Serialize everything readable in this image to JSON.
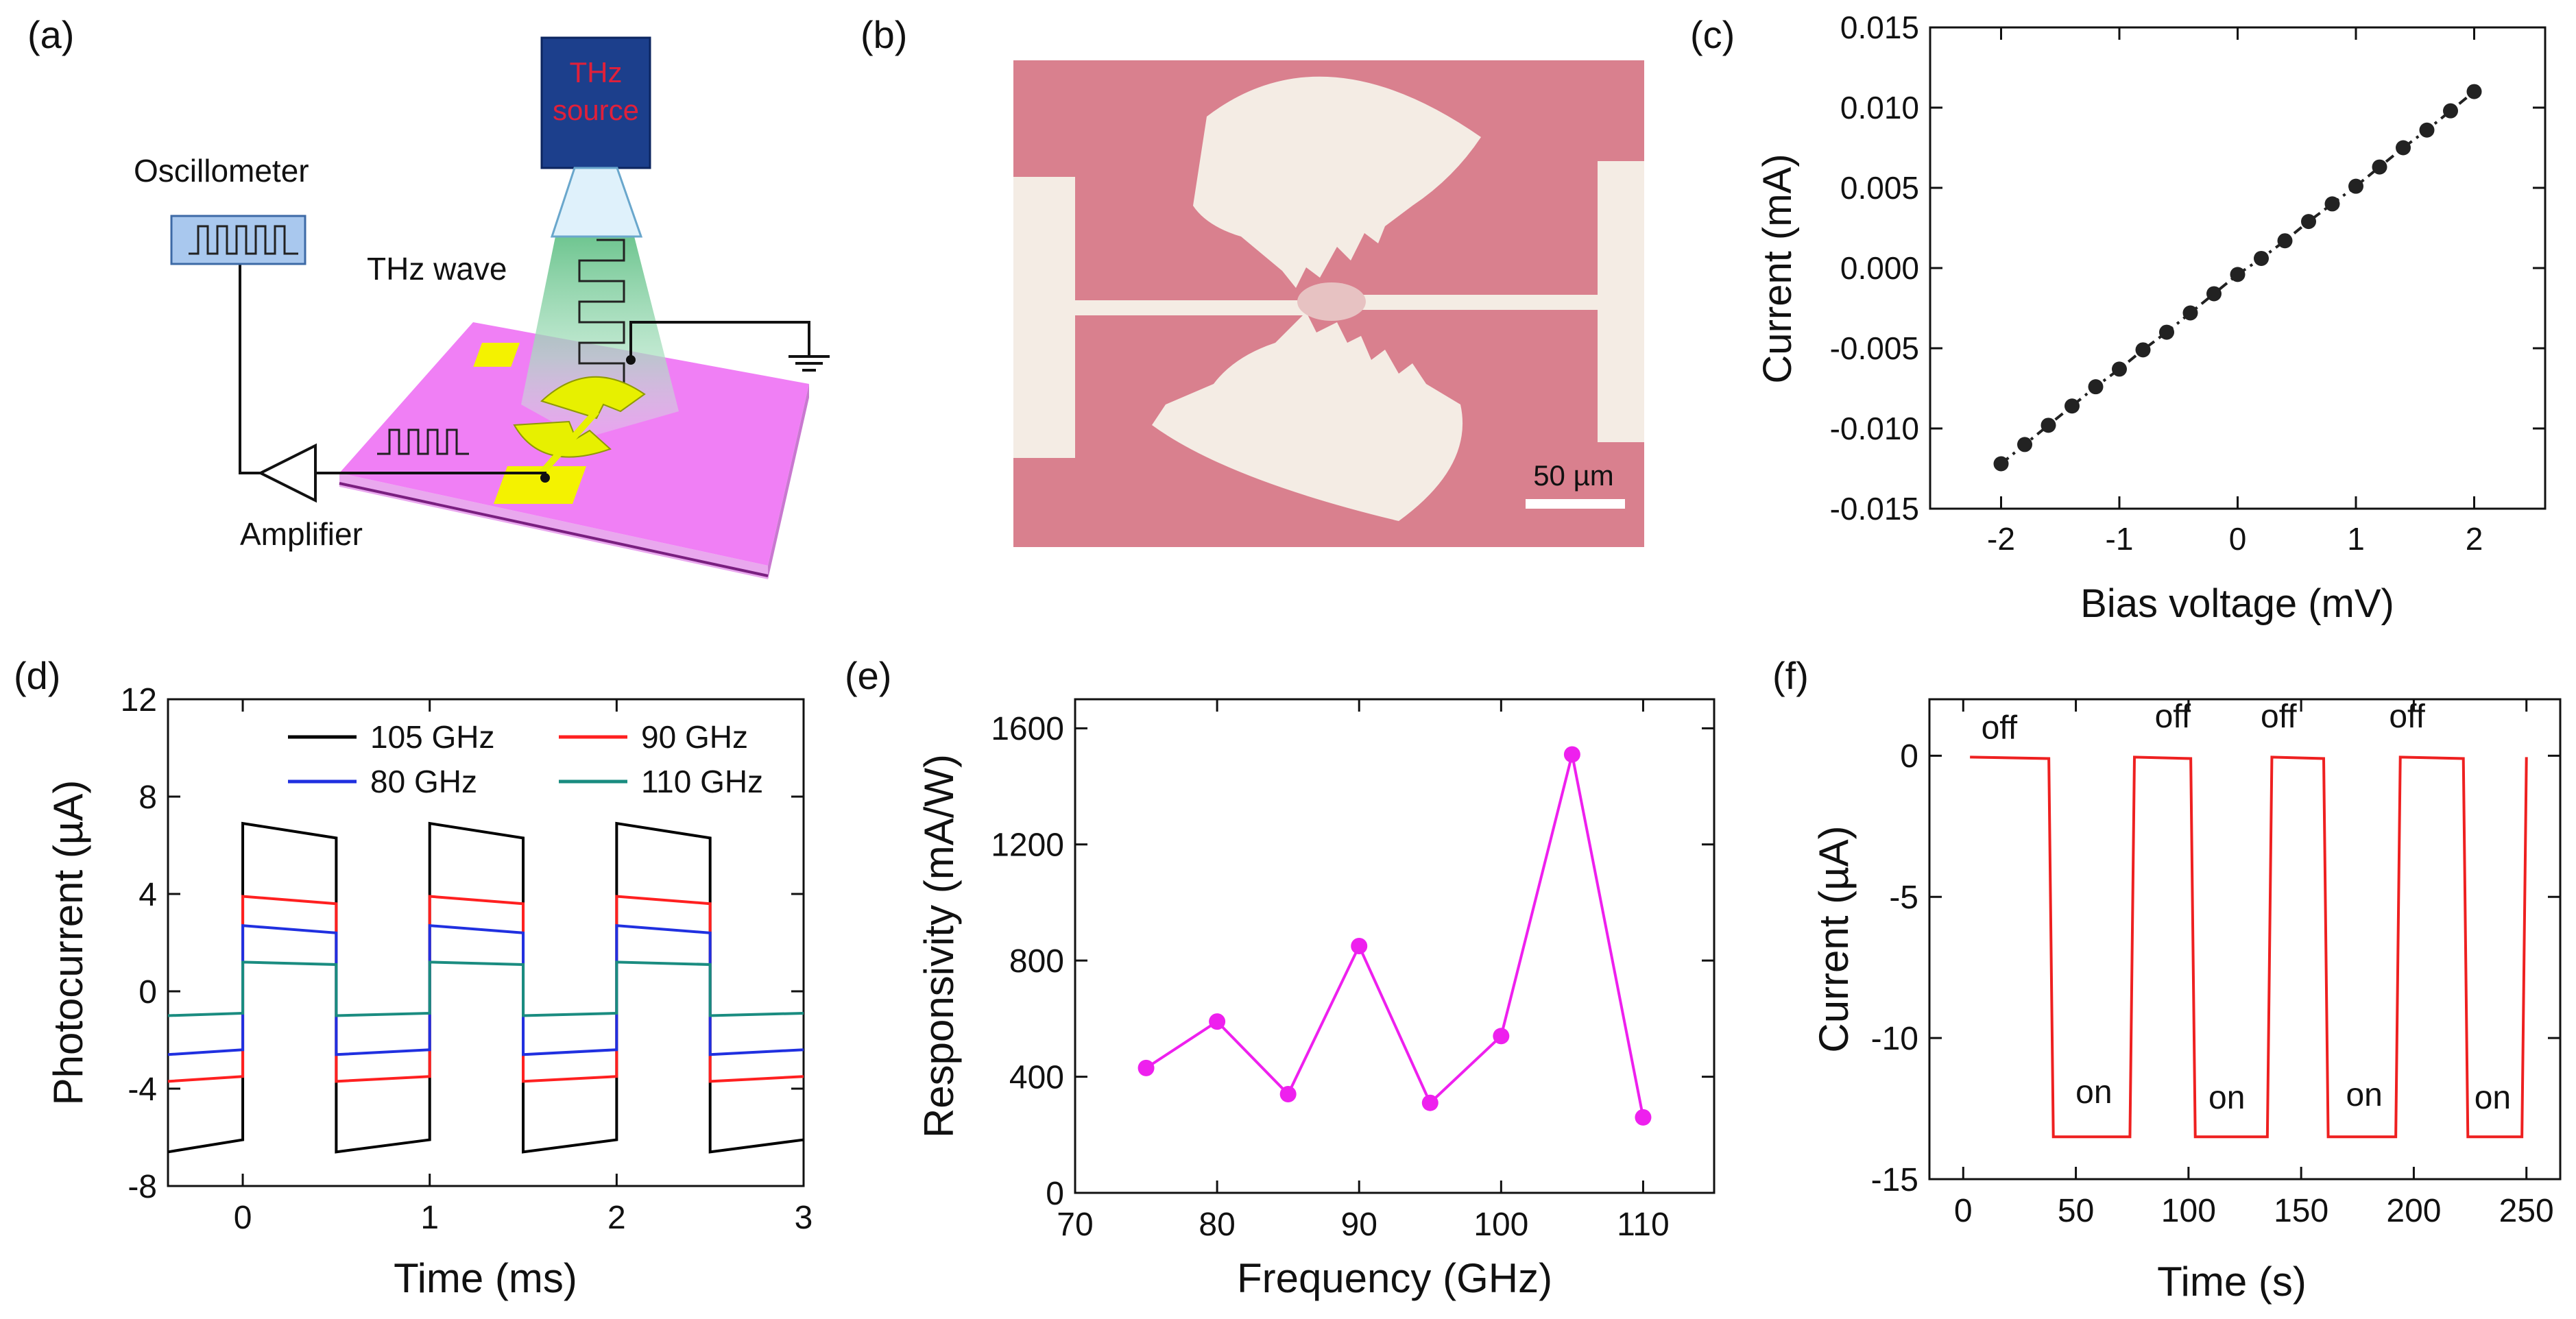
{
  "panel_labels": [
    "(a)",
    "(b)",
    "(c)",
    "(d)",
    "(e)",
    "(f)"
  ],
  "schematic": {
    "source_label_1": "THz",
    "source_label_2": "source",
    "wave_label": "THz wave",
    "oscillometer_label": "Oscillometer",
    "amplifier_label": "Amplifier",
    "colors": {
      "source": "#1c3f8c",
      "source_text": "#e0203a",
      "substrate": "#f07ff5",
      "pads": "#f4f200",
      "beam": "#7fcc9e"
    }
  },
  "micrograph": {
    "scale_label": "50 µm",
    "colors": {
      "background": "#d9808e",
      "metal": "#f4ece4"
    }
  },
  "chart_data": [
    {
      "id": "c",
      "type": "scatter",
      "title": "",
      "xlabel": "Bias voltage (mV)",
      "ylabel": "Current (mA)",
      "xlim": [
        -2.6,
        2.6
      ],
      "ylim": [
        -0.015,
        0.015
      ],
      "xticks": [
        -2,
        -1,
        0,
        1,
        2
      ],
      "yticks": [
        -0.015,
        -0.01,
        -0.005,
        0.0,
        0.005,
        0.01,
        0.015
      ],
      "ytick_labels": [
        "-0.015",
        "-0.010",
        "-0.005",
        "0.000",
        "0.005",
        "0.010",
        "0.015"
      ],
      "x": [
        -2.0,
        -1.8,
        -1.6,
        -1.4,
        -1.2,
        -1.0,
        -0.8,
        -0.6,
        -0.4,
        -0.2,
        0.0,
        0.2,
        0.4,
        0.6,
        0.8,
        1.0,
        1.2,
        1.4,
        1.6,
        1.8,
        2.0
      ],
      "y": [
        -0.0122,
        -0.011,
        -0.0098,
        -0.0086,
        -0.0074,
        -0.0063,
        -0.0051,
        -0.004,
        -0.0028,
        -0.0016,
        -0.0004,
        0.0006,
        0.0017,
        0.0029,
        0.004,
        0.0051,
        0.0063,
        0.0075,
        0.0086,
        0.0098,
        0.011
      ],
      "color": "#222222"
    },
    {
      "id": "d",
      "type": "line",
      "xlabel": "Time (ms)",
      "ylabel": "Photocurrent (µA)",
      "xlim": [
        -0.4,
        3.0
      ],
      "ylim": [
        -8,
        12
      ],
      "xticks": [
        0,
        1,
        2,
        3
      ],
      "yticks": [
        -8,
        -4,
        0,
        4,
        8,
        12
      ],
      "series": [
        {
          "name": "105 GHz",
          "color": "#000000",
          "high": 6.9,
          "high_end": 6.3,
          "low": -6.6,
          "low_end": -6.1
        },
        {
          "name": "90 GHz",
          "color": "#ff2020",
          "high": 3.9,
          "high_end": 3.6,
          "low": -3.7,
          "low_end": -3.5
        },
        {
          "name": "80 GHz",
          "color": "#2030e0",
          "high": 2.7,
          "high_end": 2.4,
          "low": -2.6,
          "low_end": -2.4
        },
        {
          "name": "110 GHz",
          "color": "#1a8c80",
          "high": 1.2,
          "high_end": 1.1,
          "low": -1.0,
          "low_end": -0.9
        }
      ],
      "period_ms": 1.0,
      "on_start_ms": [
        0.0,
        1.0,
        2.0
      ],
      "on_end_ms": [
        0.5,
        1.5,
        2.5
      ]
    },
    {
      "id": "e",
      "type": "line",
      "xlabel": "Frequency (GHz)",
      "ylabel": "Responsivity (mA/W)",
      "xlim": [
        70,
        115
      ],
      "ylim": [
        0,
        1700
      ],
      "xticks": [
        70,
        80,
        90,
        100,
        110
      ],
      "yticks": [
        0,
        400,
        800,
        1200,
        1600
      ],
      "x": [
        75,
        80,
        85,
        90,
        95,
        100,
        105,
        110
      ],
      "y": [
        430,
        590,
        340,
        850,
        310,
        540,
        1510,
        260
      ],
      "color": "#ee20ee"
    },
    {
      "id": "f",
      "type": "line",
      "xlabel": "Time (s)",
      "ylabel": "Current (µA)",
      "xlim": [
        -15,
        265
      ],
      "ylim": [
        -15,
        2
      ],
      "xticks": [
        0,
        50,
        100,
        150,
        200,
        250
      ],
      "yticks": [
        -15,
        -10,
        -5,
        0
      ],
      "points": [
        [
          3,
          -0.05
        ],
        [
          38,
          -0.1
        ],
        [
          40,
          -13.5
        ],
        [
          74,
          -13.5
        ],
        [
          76,
          -0.05
        ],
        [
          101,
          -0.1
        ],
        [
          103,
          -13.5
        ],
        [
          135,
          -13.5
        ],
        [
          137,
          -0.05
        ],
        [
          160,
          -0.1
        ],
        [
          162,
          -13.5
        ],
        [
          192,
          -13.5
        ],
        [
          194,
          -0.05
        ],
        [
          222,
          -0.1
        ],
        [
          224,
          -13.5
        ],
        [
          248,
          -13.5
        ],
        [
          250,
          -0.05
        ]
      ],
      "annotations": [
        {
          "text": "off",
          "x": 16,
          "y": 0.6
        },
        {
          "text": "off",
          "x": 93,
          "y": 1.0
        },
        {
          "text": "off",
          "x": 140,
          "y": 1.0
        },
        {
          "text": "off",
          "x": 197,
          "y": 1.0
        },
        {
          "text": "on",
          "x": 58,
          "y": -12.3
        },
        {
          "text": "on",
          "x": 117,
          "y": -12.5
        },
        {
          "text": "on",
          "x": 178,
          "y": -12.4
        },
        {
          "text": "on",
          "x": 235,
          "y": -12.5
        }
      ],
      "color": "#ee2020"
    }
  ]
}
